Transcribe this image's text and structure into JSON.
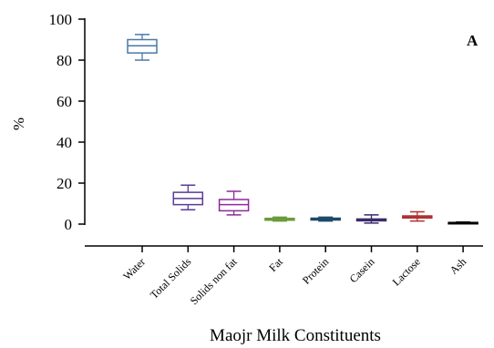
{
  "chart_data": {
    "type": "boxplot",
    "panel_label": "A",
    "xlabel": "Maojr Milk Constituents",
    "ylabel": "%",
    "ylim": [
      0,
      100
    ],
    "yticks": [
      0,
      20,
      40,
      60,
      80,
      100
    ],
    "grid": false,
    "categories": [
      "Water",
      "Total Solids",
      "Solids non fat",
      "Fat",
      "Protein",
      "Casein",
      "Lactose",
      "Ash"
    ],
    "boxes": [
      {
        "category": "Water",
        "min": 80,
        "q1": 83.5,
        "median": 87,
        "q3": 90,
        "max": 92.5,
        "color": "#4a78a8"
      },
      {
        "category": "Total Solids",
        "min": 7,
        "q1": 9.5,
        "median": 12.5,
        "q3": 15.5,
        "max": 19,
        "color": "#5b3a9a"
      },
      {
        "category": "Solids non fat",
        "min": 4.5,
        "q1": 6.5,
        "median": 9.5,
        "q3": 12,
        "max": 16,
        "color": "#8e2a9c"
      },
      {
        "category": "Fat",
        "min": 1.5,
        "q1": 1.9,
        "median": 2.3,
        "q3": 2.8,
        "max": 3.4,
        "color": "#6a9a3a"
      },
      {
        "category": "Protein",
        "min": 1.5,
        "q1": 2.0,
        "median": 2.4,
        "q3": 2.9,
        "max": 3.4,
        "color": "#1f4a6a"
      },
      {
        "category": "Casein",
        "min": 0.5,
        "q1": 1.6,
        "median": 2.0,
        "q3": 2.5,
        "max": 4.5,
        "color": "#3a2a6a"
      },
      {
        "category": "Lactose",
        "min": 1.5,
        "q1": 3.0,
        "median": 3.5,
        "q3": 4.0,
        "max": 6.0,
        "color": "#b03030"
      },
      {
        "category": "Ash",
        "min": 0.4,
        "q1": 0.6,
        "median": 0.7,
        "q3": 0.8,
        "max": 1.0,
        "color": "#000000"
      }
    ]
  }
}
